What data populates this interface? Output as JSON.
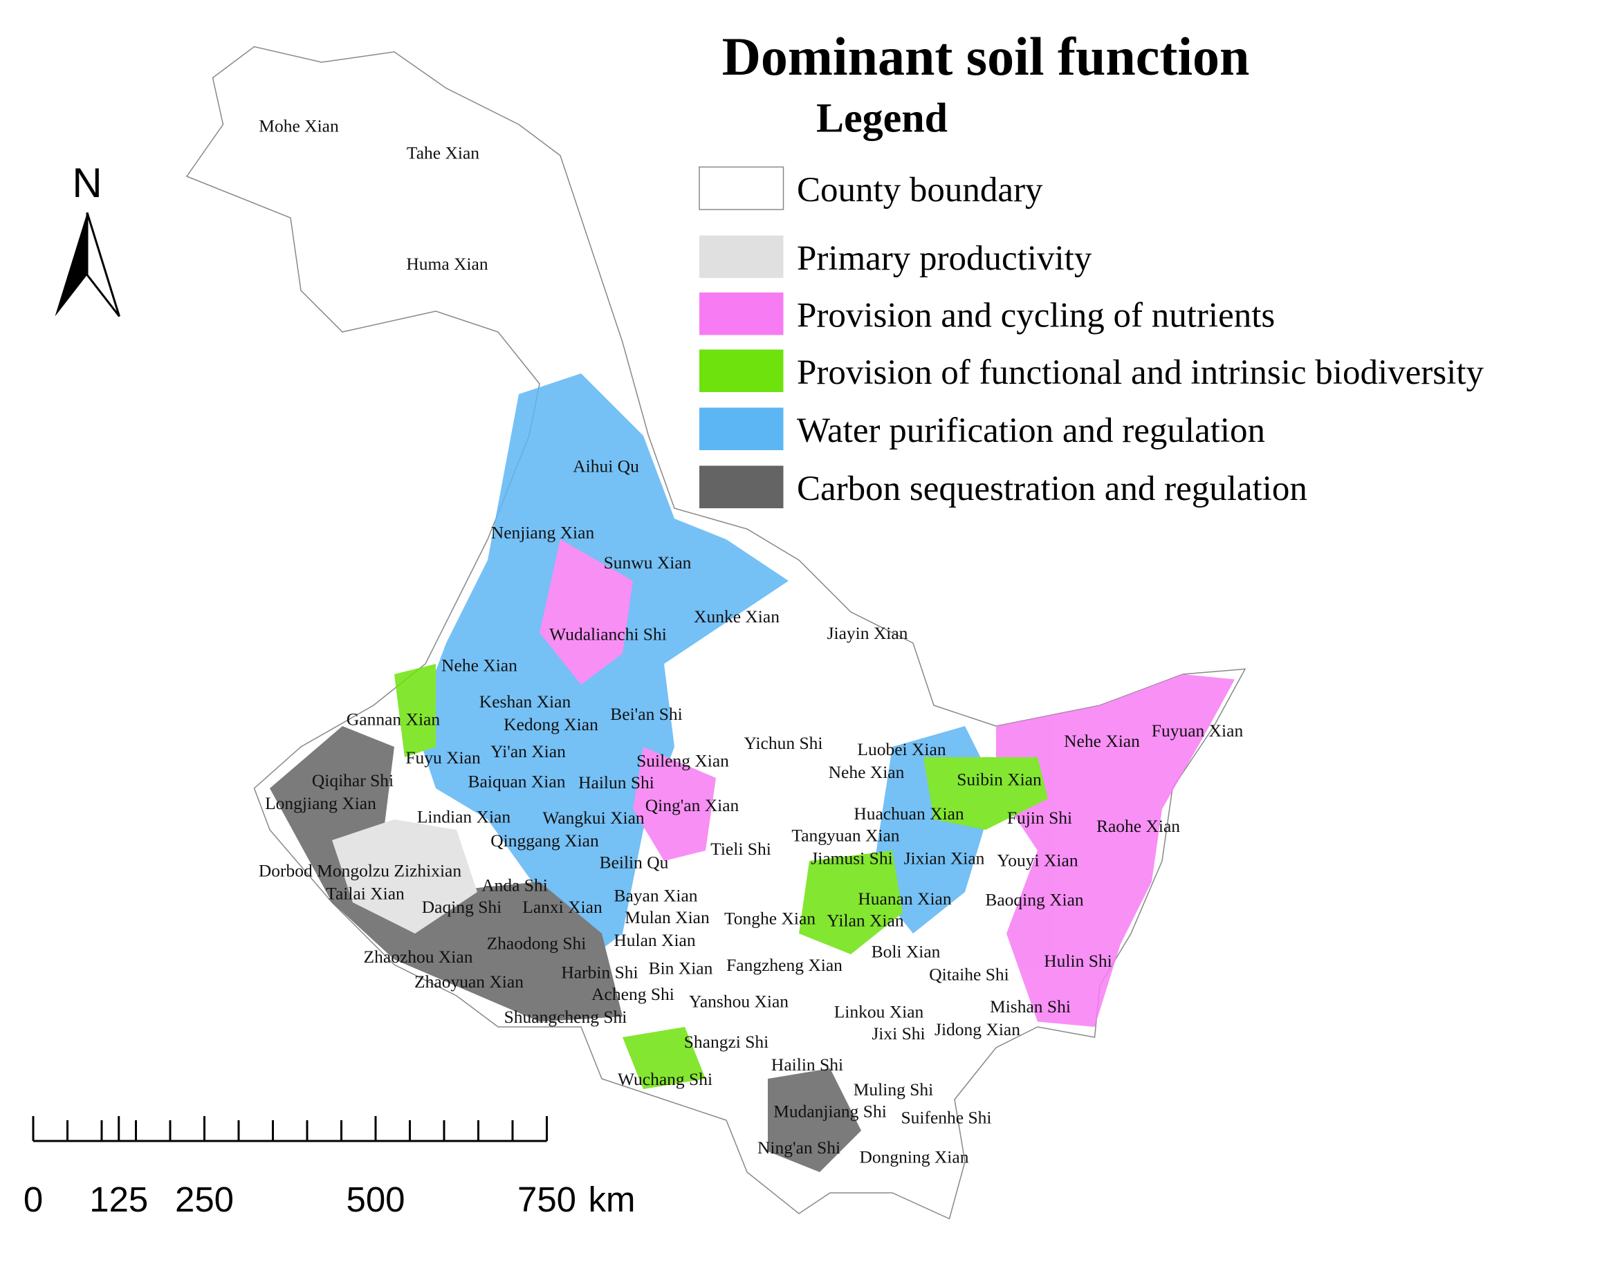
{
  "title": "Dominant soil function",
  "legend": {
    "title": "Legend",
    "items": [
      {
        "label": "County boundary",
        "color": "#ffffff"
      },
      {
        "label": "Primary productivity",
        "color": "#e0e0e0"
      },
      {
        "label": "Provision and cycling of nutrients",
        "color": "#f77cf4"
      },
      {
        "label": "Provision of functional and intrinsic biodiversity",
        "color": "#6ee20c"
      },
      {
        "label": "Water purification and regulation",
        "color": "#5db6f4"
      },
      {
        "label": "Carbon sequestration and regulation",
        "color": "#646464"
      }
    ]
  },
  "north_arrow": "N",
  "scale_bar": {
    "ticks": [
      0,
      125,
      250,
      500,
      750
    ],
    "unit": "km"
  },
  "county_labels": [
    "Mohe Xian",
    "Tahe Xian",
    "Huma Xian",
    "Aihui Qu",
    "Nenjiang Xian",
    "Sunwu Xian",
    "Xunke Xian",
    "Jiayin Xian",
    "Wudalianchi Shi",
    "Nehe Xian",
    "Keshan Xian",
    "Gannan Xian",
    "Kedong Xian",
    "Bei'an Shi",
    "Yichun Shi",
    "Luobei Xian",
    "Nehe Xian",
    "Fuyuan Xian",
    "Fuyu Xian",
    "Yi'an Xian",
    "Suileng Xian",
    "Nehe Xian",
    "Suibin Xian",
    "Qiqihar Shi",
    "Baiquan Xian",
    "Hailun Shi",
    "Longjiang Xian",
    "Qing'an Xian",
    "Huachuan Xian",
    "Fujin Shi",
    "Raohe Xian",
    "Lindian Xian",
    "Wangkui Xian",
    "Qinggang Xian",
    "Tangyuan Xian",
    "Tieli Shi",
    "Beilin Qu",
    "Jiamusi Shi",
    "Jixian Xian",
    "Youyi Xian",
    "Dorbod Mongolzu Zizhixian",
    "Anda Shi",
    "Tailai Xian",
    "Bayan Xian",
    "Huanan Xian",
    "Baoqing Xian",
    "Daqing Shi",
    "Lanxi Xian",
    "Mulan Xian",
    "Tonghe Xian",
    "Yilan Xian",
    "Zhaodong Shi",
    "Hulan Xian",
    "Zhaozhou Xian",
    "Boli Xian",
    "Harbin Shi",
    "Bin Xian",
    "Fangzheng Xian",
    "Qitaihe Shi",
    "Hulin Shi",
    "Zhaoyuan Xian",
    "Acheng Shi",
    "Yanshou Xian",
    "Linkou Xian",
    "Mishan Shi",
    "Shuangcheng Shi",
    "Jixi Shi",
    "Jidong Xian",
    "Shangzi Shi",
    "Hailin Shi",
    "Wuchang Shi",
    "Muling Shi",
    "Mudanjiang Shi",
    "Suifenhe Shi",
    "Ning'an Shi",
    "Dongning Xian"
  ]
}
